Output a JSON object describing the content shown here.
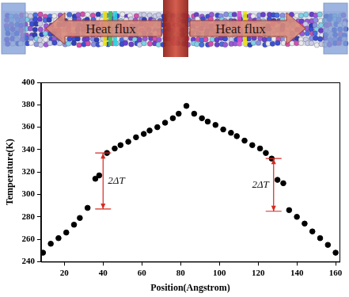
{
  "diagram": {
    "labels": [
      "Heat flux",
      "Heat flux"
    ]
  },
  "chart_data": {
    "type": "scatter",
    "x_label": "Position(Angstrom)",
    "y_label": "Temperature(K)",
    "x": [
      9,
      13,
      17,
      21,
      25,
      28,
      32,
      36,
      38,
      42,
      46,
      49,
      53,
      57,
      61,
      64,
      68,
      72,
      76,
      79,
      83,
      87,
      91,
      94,
      98,
      102,
      106,
      109,
      113,
      117,
      121,
      124,
      127,
      130,
      133,
      136,
      140,
      144,
      148,
      152,
      156,
      160
    ],
    "values": [
      248,
      256,
      261,
      266,
      273,
      279,
      288,
      314,
      317,
      337,
      341,
      344,
      347,
      351,
      354,
      357,
      360,
      364,
      368,
      372,
      379,
      372,
      368,
      365,
      362,
      358,
      355,
      352,
      348,
      344,
      341,
      337,
      332,
      313,
      310,
      286,
      280,
      274,
      267,
      261,
      255,
      248
    ],
    "color": "#000000",
    "marker": "circle",
    "xlim": [
      8,
      162
    ],
    "xticks": [
      20,
      40,
      60,
      80,
      100,
      120,
      140,
      160
    ],
    "ylim": [
      240,
      400
    ],
    "yticks": [
      240,
      260,
      280,
      300,
      320,
      340,
      360,
      380,
      400
    ],
    "grid": false,
    "annotations": [
      {
        "text": "2ΔT",
        "x": 40,
        "y": [
          287,
          337
        ]
      },
      {
        "text": "2ΔT",
        "x": 128,
        "y": [
          285,
          332
        ]
      }
    ]
  }
}
